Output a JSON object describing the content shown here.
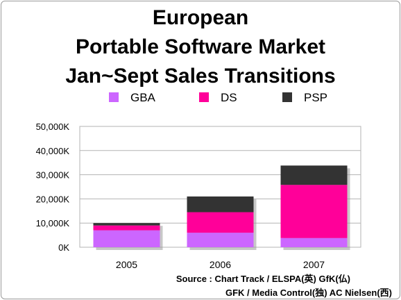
{
  "chart_data": {
    "type": "bar",
    "stacked": true,
    "title": "European\nPortable Software Market\nJan~Sept Sales Transitions",
    "title_lines": [
      "European",
      "Portable Software Market",
      "Jan~Sept Sales Transitions"
    ],
    "categories": [
      "2005",
      "2006",
      "2007"
    ],
    "series": [
      {
        "name": "GBA",
        "color": "#cc66ff",
        "values": [
          7000,
          6000,
          3800
        ]
      },
      {
        "name": "DS",
        "color": "#ff0099",
        "values": [
          2000,
          8500,
          22000
        ]
      },
      {
        "name": "PSP",
        "color": "#333333",
        "values": [
          1000,
          6500,
          8000
        ]
      }
    ],
    "ylim": [
      0,
      50000
    ],
    "yticks": [
      0,
      10000,
      20000,
      30000,
      40000,
      50000
    ],
    "ytick_labels": [
      "0K",
      "10,000K",
      "20,000K",
      "30,000K",
      "40,000K",
      "50,000K"
    ],
    "grid": true,
    "legend": "top",
    "source_lines": [
      "Source : Chart Track / ELSPA(英) GfK(仏)",
      "GFK / Media Control(独) AC Nielsen(西)"
    ]
  }
}
